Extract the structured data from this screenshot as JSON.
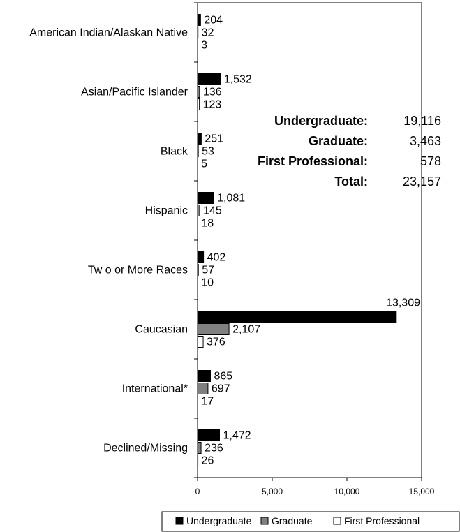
{
  "chart_data": {
    "type": "bar",
    "orientation": "horizontal",
    "categories": [
      "American Indian/Alaskan Native",
      "Asian/Pacific Islander",
      "Black",
      "Hispanic",
      "Tw o or More Races",
      "Caucasian",
      "International*",
      "Declined/Missing"
    ],
    "series": [
      {
        "name": "Undergraduate",
        "color": "#000000",
        "values": [
          204,
          1532,
          251,
          1081,
          402,
          13309,
          865,
          1472
        ],
        "labels": [
          "204",
          "1,532",
          "251",
          "1,081",
          "402",
          "13,309",
          "865",
          "1,472"
        ]
      },
      {
        "name": "Graduate",
        "color": "#808080",
        "values": [
          32,
          136,
          53,
          145,
          57,
          2107,
          697,
          236
        ],
        "labels": [
          "32",
          "136",
          "53",
          "145",
          "57",
          "2,107",
          "697",
          "236"
        ]
      },
      {
        "name": "First Professional",
        "color": "#ffffff",
        "values": [
          3,
          123,
          5,
          18,
          10,
          376,
          17,
          26
        ],
        "labels": [
          "3",
          "123",
          "5",
          "18",
          "10",
          "376",
          "17",
          "26"
        ]
      }
    ],
    "xlim": [
      0,
      15000
    ],
    "xticks": [
      0,
      5000,
      10000,
      15000
    ],
    "xtick_labels": [
      "0",
      "5,000",
      "10,000",
      "15,000"
    ],
    "legend_position": "bottom",
    "grid": false,
    "summary": [
      {
        "label": "Undergraduate:",
        "value": "19,116"
      },
      {
        "label": "Graduate:",
        "value": "3,463"
      },
      {
        "label": "First Professional:",
        "value": "578"
      },
      {
        "label": "Total:",
        "value": "23,157"
      }
    ]
  }
}
